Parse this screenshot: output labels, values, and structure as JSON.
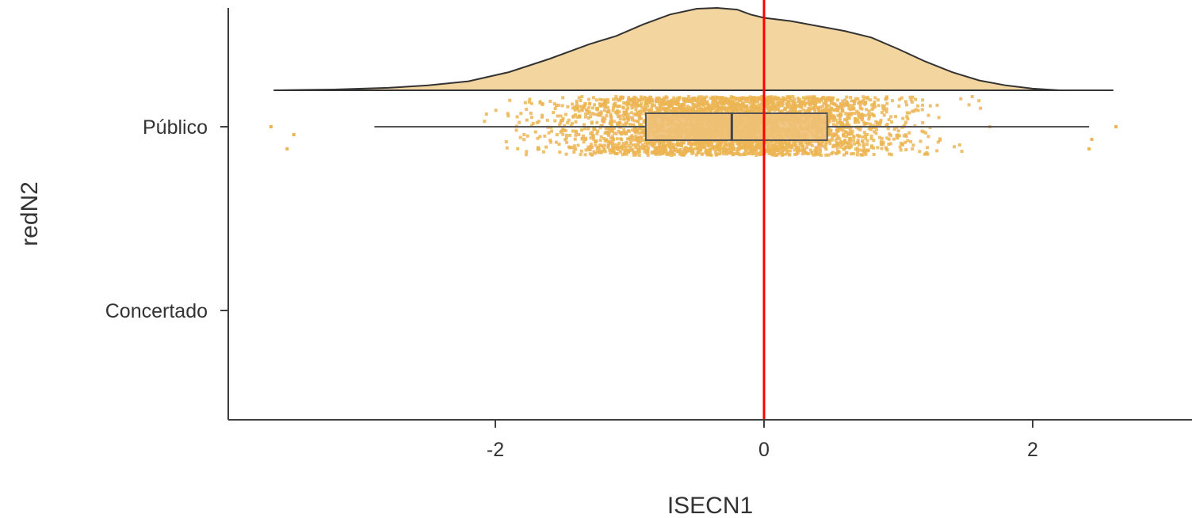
{
  "chart_data": {
    "type": "raincloud",
    "xlabel": "ISECN1",
    "ylabel": "redN2",
    "xlim": [
      -3.95,
      3.15
    ],
    "x_ticks": [
      -2,
      0,
      2
    ],
    "x_tick_labels": [
      "-2",
      "0",
      "2"
    ],
    "categories": [
      "Público",
      "Concertado"
    ],
    "grid": false,
    "fill_color": "#ecb553",
    "density_fill": "#f3d59f",
    "reference_line": {
      "x": 0,
      "color": "#ff0000"
    },
    "series": [
      {
        "category": "Público",
        "box": {
          "whisker_low": -2.9,
          "q1": -0.88,
          "median": -0.24,
          "q3": 0.47,
          "whisker_high": 2.42
        },
        "point_range": [
          -3.67,
          2.62
        ],
        "density": {
          "x": [
            -3.65,
            -3.2,
            -2.8,
            -2.5,
            -2.2,
            -1.9,
            -1.6,
            -1.3,
            -1.1,
            -0.9,
            -0.7,
            -0.5,
            -0.35,
            -0.2,
            -0.1,
            0.0,
            0.2,
            0.4,
            0.6,
            0.8,
            1.0,
            1.2,
            1.4,
            1.6,
            1.8,
            2.0,
            2.2,
            2.6
          ],
          "y": [
            0.0,
            0.01,
            0.03,
            0.06,
            0.11,
            0.22,
            0.38,
            0.56,
            0.66,
            0.8,
            0.92,
            0.99,
            1.0,
            0.98,
            0.92,
            0.88,
            0.84,
            0.78,
            0.72,
            0.64,
            0.5,
            0.35,
            0.22,
            0.12,
            0.06,
            0.02,
            0.0,
            0.0
          ]
        }
      },
      {
        "category": "Concertado",
        "box": null,
        "density": null
      }
    ]
  }
}
